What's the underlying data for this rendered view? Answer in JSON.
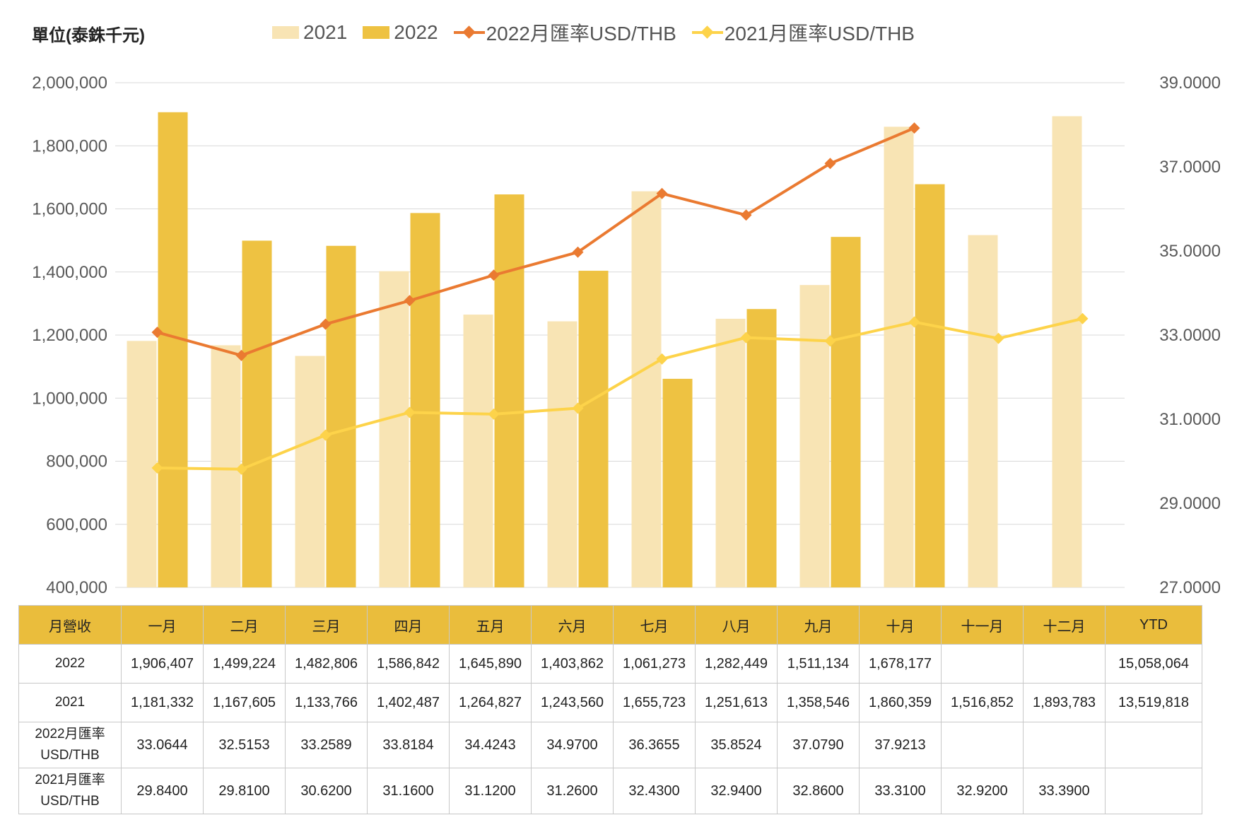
{
  "unit_label": "單位(泰銖千元)",
  "legend": [
    {
      "label": "2021",
      "kind": "bar",
      "color": "#f8e4b4"
    },
    {
      "label": "2022",
      "kind": "bar",
      "color": "#eec242"
    },
    {
      "label": "2022月匯率USD/THB",
      "kind": "line",
      "color": "#ea7a31"
    },
    {
      "label": "2021月匯率USD/THB",
      "kind": "line",
      "color": "#fdd34a"
    }
  ],
  "chart_data": {
    "type": "bar",
    "categories": [
      "一月",
      "二月",
      "三月",
      "四月",
      "五月",
      "六月",
      "七月",
      "八月",
      "九月",
      "十月",
      "十一月",
      "十二月"
    ],
    "series": [
      {
        "name": "2021",
        "type": "bar",
        "axis": "left",
        "color": "#f8e4b4",
        "values": [
          1181332,
          1167605,
          1133766,
          1402487,
          1264827,
          1243560,
          1655723,
          1251613,
          1358546,
          1860359,
          1516852,
          1893783
        ]
      },
      {
        "name": "2022",
        "type": "bar",
        "axis": "left",
        "color": "#eec242",
        "values": [
          1906407,
          1499224,
          1482806,
          1586842,
          1645890,
          1403862,
          1061273,
          1282449,
          1511134,
          1678177,
          null,
          null
        ]
      },
      {
        "name": "2022月匯率USD/THB",
        "type": "line",
        "axis": "right",
        "color": "#ea7a31",
        "values": [
          33.0644,
          32.5153,
          33.2589,
          33.8184,
          34.4243,
          34.97,
          36.3655,
          35.8524,
          37.079,
          37.9213,
          null,
          null
        ]
      },
      {
        "name": "2021月匯率USD/THB",
        "type": "line",
        "axis": "right",
        "color": "#fdd34a",
        "values": [
          29.84,
          29.81,
          30.62,
          31.16,
          31.12,
          31.26,
          32.43,
          32.94,
          32.86,
          33.31,
          32.92,
          33.39
        ]
      }
    ],
    "left_axis": {
      "min": 400000,
      "max": 2000000,
      "ticks": [
        "400,000",
        "600,000",
        "800,000",
        "1,000,000",
        "1,200,000",
        "1,400,000",
        "1,600,000",
        "1,800,000",
        "2,000,000"
      ]
    },
    "right_axis": {
      "min": 27,
      "max": 39,
      "ticks": [
        "27.0000",
        "29.0000",
        "31.0000",
        "33.0000",
        "35.0000",
        "37.0000",
        "39.0000"
      ]
    },
    "grid": true,
    "legend_position": "top"
  },
  "table": {
    "header": [
      "月營收",
      "一月",
      "二月",
      "三月",
      "四月",
      "五月",
      "六月",
      "七月",
      "八月",
      "九月",
      "十月",
      "十一月",
      "十二月",
      "YTD"
    ],
    "rows": [
      {
        "label": [
          "2022"
        ],
        "cells": [
          "1,906,407",
          "1,499,224",
          "1,482,806",
          "1,586,842",
          "1,645,890",
          "1,403,862",
          "1,061,273",
          "1,282,449",
          "1,511,134",
          "1,678,177",
          "",
          "",
          "15,058,064"
        ]
      },
      {
        "label": [
          "2021"
        ],
        "cells": [
          "1,181,332",
          "1,167,605",
          "1,133,766",
          "1,402,487",
          "1,264,827",
          "1,243,560",
          "1,655,723",
          "1,251,613",
          "1,358,546",
          "1,860,359",
          "1,516,852",
          "1,893,783",
          "13,519,818"
        ]
      },
      {
        "label": [
          "2022月匯率",
          "USD/THB"
        ],
        "cells": [
          "33.0644",
          "32.5153",
          "33.2589",
          "33.8184",
          "34.4243",
          "34.9700",
          "36.3655",
          "35.8524",
          "37.0790",
          "37.9213",
          "",
          "",
          ""
        ]
      },
      {
        "label": [
          "2021月匯率",
          "USD/THB"
        ],
        "cells": [
          "29.8400",
          "29.8100",
          "30.6200",
          "31.1600",
          "31.1200",
          "31.2600",
          "32.4300",
          "32.9400",
          "32.8600",
          "33.3100",
          "32.9200",
          "33.3900",
          ""
        ]
      }
    ]
  }
}
